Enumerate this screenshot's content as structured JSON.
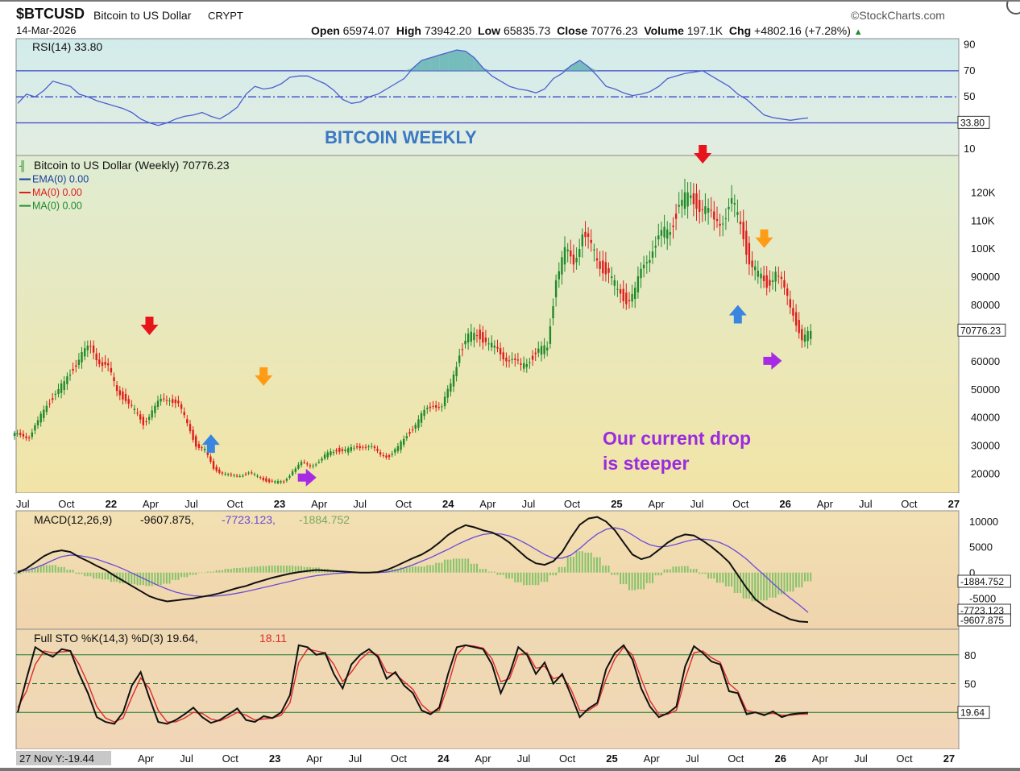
{
  "header": {
    "symbol": "$BTCUSD",
    "description": "Bitcoin to US Dollar",
    "exchange": "CRYPT",
    "date": "14-Mar-2026",
    "brand": "©StockCharts.com",
    "stats": [
      {
        "label": "Open",
        "value": "65974.07"
      },
      {
        "label": "High",
        "value": "73942.20"
      },
      {
        "label": "Low",
        "value": "65835.73"
      },
      {
        "label": "Close",
        "value": "70776.23"
      },
      {
        "label": "Volume",
        "value": "197.1K"
      },
      {
        "label": "Chg",
        "value": "+4802.16 (+7.28%)"
      }
    ]
  },
  "colors": {
    "up": "#1e8a2a",
    "down": "#e01b1b",
    "rsi_line": "#4a5fd0",
    "macd_line": "#111111",
    "signal_line": "#6b4bd8",
    "histogram": "#86c36a",
    "k_line": "#111111",
    "d_line": "#e02b2b",
    "arrow_red": "#e8141b",
    "arrow_orange": "#ff9c16",
    "arrow_blue": "#3a85e0",
    "arrow_purple": "#a52be5",
    "annotation_blue": "#3a78c4",
    "annotation_purple": "#9a2be0"
  },
  "chart_data": [
    {
      "type": "line",
      "panel": "rsi",
      "label": "RSI(14)",
      "label_value": "33.80",
      "reference_lines": [
        70,
        50,
        30
      ],
      "y_ticks": [
        "90",
        "70",
        "50",
        "10"
      ],
      "last_value_tag": "33.80",
      "ylim": [
        0,
        100
      ],
      "values": [
        45,
        52,
        50,
        55,
        62,
        60,
        58,
        52,
        50,
        47,
        45,
        43,
        41,
        38,
        33,
        30,
        28,
        30,
        33,
        35,
        36,
        38,
        35,
        33,
        37,
        42,
        52,
        58,
        56,
        57,
        60,
        65,
        66,
        66,
        63,
        60,
        55,
        48,
        45,
        46,
        50,
        52,
        56,
        60,
        64,
        72,
        78,
        80,
        82,
        84,
        86,
        85,
        80,
        72,
        66,
        62,
        58,
        56,
        55,
        53,
        56,
        64,
        68,
        74,
        78,
        73,
        66,
        58,
        56,
        53,
        51,
        52,
        54,
        58,
        64,
        66,
        68,
        69,
        70,
        66,
        62,
        58,
        52,
        48,
        42,
        36,
        34,
        33,
        32,
        33,
        33.8
      ]
    },
    {
      "type": "candlestick",
      "panel": "price",
      "legend": [
        {
          "name": "Bitcoin to US Dollar (Weekly) 70776.23",
          "color": "#1e8a2a"
        },
        {
          "name": "EMA(0) 0.00",
          "color": "#1a3fa0"
        },
        {
          "name": "MA(0) 0.00",
          "color": "#e01b1b"
        },
        {
          "name": "MA(0) 0.00",
          "color": "#1e8a2a"
        }
      ],
      "y_ticks": [
        "120K",
        "110K",
        "100K",
        "90000",
        "80000",
        "60000",
        "50000",
        "40000",
        "30000",
        "20000"
      ],
      "last_value_tag": "70776.23",
      "ylim": [
        13000,
        133000
      ],
      "x_tick_labels": [
        "Jul",
        "Oct",
        "22",
        "Apr",
        "Jul",
        "Oct",
        "23",
        "Apr",
        "Jul",
        "Oct",
        "24",
        "Apr",
        "Jul",
        "Oct",
        "25",
        "Apr",
        "Jul",
        "Oct",
        "26",
        "Apr",
        "Jul",
        "Oct",
        "27"
      ],
      "closes": [
        34000,
        33000,
        38000,
        45000,
        48000,
        52000,
        58000,
        62000,
        65000,
        60000,
        57000,
        50000,
        46000,
        42000,
        38000,
        42000,
        46000,
        47000,
        44000,
        38000,
        30000,
        28000,
        22000,
        20000,
        19000,
        19500,
        20000,
        19000,
        17500,
        16800,
        17000,
        21000,
        23500,
        23000,
        24000,
        27000,
        28500,
        28000,
        29000,
        30000,
        29000,
        27000,
        26000,
        29000,
        34000,
        37000,
        42000,
        45000,
        43000,
        52000,
        63000,
        68000,
        70000,
        67000,
        64000,
        62000,
        60000,
        58000,
        61000,
        63000,
        65000,
        90000,
        98000,
        96000,
        105000,
        100000,
        95000,
        90000,
        85000,
        82000,
        84000,
        95000,
        100000,
        104000,
        108000,
        115000,
        118000,
        117000,
        113000,
        110000,
        111000,
        115000,
        110000,
        95000,
        90000,
        88000,
        91000,
        85000,
        78000,
        66000,
        70776.23
      ],
      "annotations": [
        {
          "text": "BITCOIN WEEKLY",
          "color": "#3a78c4"
        },
        {
          "text": "Our current drop",
          "color": "#9a2be0"
        },
        {
          "text": "is steeper",
          "color": "#9a2be0"
        }
      ],
      "arrows": [
        {
          "direction": "down",
          "color": "red",
          "x": 15,
          "y": 72000
        },
        {
          "direction": "down",
          "color": "orange",
          "x": 28,
          "y": 54000
        },
        {
          "direction": "up",
          "color": "blue",
          "x": 22,
          "y": 31000
        },
        {
          "direction": "right",
          "color": "purple",
          "x": 33,
          "y": 18500
        },
        {
          "direction": "down",
          "color": "red",
          "x": 78,
          "y": 133000
        },
        {
          "direction": "down",
          "color": "orange",
          "x": 85,
          "y": 103000
        },
        {
          "direction": "up",
          "color": "blue",
          "x": 82,
          "y": 77000
        },
        {
          "direction": "right",
          "color": "purple",
          "x": 86,
          "y": 60000
        }
      ]
    },
    {
      "type": "line",
      "panel": "macd",
      "label": "MACD(12,26,9)",
      "values_text": [
        "-9607.875,",
        "-7723.123,",
        "-1884.752"
      ],
      "y_ticks": [
        "10000",
        "5000",
        "0",
        "-5000"
      ],
      "value_tags": [
        "-1884.752",
        "-7723.123",
        "-9607.875"
      ],
      "ylim": [
        -11000,
        12000
      ],
      "macd": [
        0,
        800,
        2000,
        3200,
        4000,
        4300,
        4000,
        3000,
        2200,
        1300,
        500,
        -600,
        -1600,
        -2600,
        -3600,
        -4600,
        -5200,
        -5600,
        -5400,
        -5200,
        -5000,
        -4700,
        -4400,
        -4000,
        -3500,
        -3000,
        -2600,
        -2000,
        -1500,
        -1000,
        -600,
        -200,
        100,
        300,
        500,
        400,
        300,
        200,
        100,
        0,
        0,
        100,
        500,
        1200,
        2000,
        2800,
        3500,
        4500,
        5800,
        7300,
        8400,
        9200,
        8800,
        8200,
        7800,
        7000,
        5800,
        4300,
        2800,
        1800,
        1500,
        2200,
        4000,
        6800,
        9300,
        10500,
        10800,
        9900,
        8200,
        5800,
        3500,
        2600,
        3100,
        4400,
        5800,
        6800,
        7400,
        7200,
        6200,
        5000,
        3600,
        2000,
        -500,
        -3000,
        -5200,
        -6500,
        -7500,
        -8300,
        -9100,
        -9500,
        -9607.875
      ],
      "signal": [
        300,
        400,
        900,
        1600,
        2400,
        3100,
        3400,
        3300,
        3000,
        2600,
        2000,
        1400,
        700,
        -100,
        -900,
        -1700,
        -2500,
        -3200,
        -3800,
        -4200,
        -4500,
        -4600,
        -4600,
        -4500,
        -4300,
        -4000,
        -3700,
        -3300,
        -2900,
        -2500,
        -2100,
        -1700,
        -1300,
        -900,
        -600,
        -400,
        -200,
        -100,
        0,
        0,
        0,
        0,
        100,
        400,
        900,
        1500,
        2200,
        2900,
        3700,
        4500,
        5400,
        6200,
        6900,
        7400,
        7600,
        7500,
        7100,
        6400,
        5500,
        4500,
        3500,
        2800,
        2800,
        3400,
        4700,
        6200,
        7500,
        8400,
        8700,
        8300,
        7300,
        6200,
        5400,
        5000,
        5100,
        5500,
        6000,
        6400,
        6500,
        6300,
        5800,
        5000,
        3900,
        2600,
        1000,
        -500,
        -2100,
        -3600,
        -5000,
        -6300,
        -7723.123
      ],
      "histogram_last": -1884.752
    },
    {
      "type": "line",
      "panel": "stochastic",
      "label": "Full STO %K(14,3) %D(3)",
      "k_label_value": "19.64",
      "d_label_value": "18.11",
      "reference_lines": [
        80,
        50,
        20
      ],
      "y_ticks": [
        "80",
        "50"
      ],
      "last_value_tag": "19.64",
      "ylim": [
        0,
        100
      ],
      "k": [
        20,
        55,
        88,
        82,
        78,
        86,
        84,
        60,
        40,
        15,
        10,
        8,
        20,
        48,
        62,
        35,
        10,
        8,
        12,
        18,
        25,
        15,
        9,
        12,
        18,
        24,
        12,
        10,
        16,
        14,
        20,
        38,
        90,
        88,
        80,
        82,
        60,
        45,
        70,
        80,
        86,
        78,
        55,
        62,
        48,
        40,
        22,
        18,
        25,
        60,
        88,
        90,
        88,
        86,
        70,
        40,
        60,
        88,
        80,
        60,
        72,
        50,
        60,
        38,
        15,
        24,
        30,
        65,
        82,
        90,
        75,
        45,
        26,
        15,
        19,
        26,
        68,
        89,
        82,
        73,
        70,
        42,
        40,
        18,
        20,
        17,
        21,
        15,
        18,
        19,
        19.64
      ],
      "d": [
        25,
        42,
        70,
        84,
        82,
        83,
        84,
        70,
        50,
        26,
        14,
        10,
        14,
        36,
        56,
        45,
        22,
        10,
        10,
        14,
        20,
        19,
        13,
        11,
        15,
        20,
        17,
        12,
        13,
        14,
        17,
        30,
        72,
        86,
        84,
        82,
        70,
        52,
        62,
        75,
        83,
        80,
        62,
        60,
        52,
        44,
        28,
        20,
        22,
        48,
        80,
        90,
        89,
        87,
        76,
        52,
        55,
        80,
        82,
        66,
        68,
        55,
        58,
        44,
        22,
        22,
        28,
        55,
        76,
        88,
        80,
        55,
        32,
        18,
        18,
        22,
        55,
        82,
        84,
        77,
        72,
        50,
        42,
        22,
        20,
        18,
        19,
        17,
        17,
        18,
        18.11
      ]
    }
  ],
  "bottom_axis": {
    "crosshair_readout": "27 Nov Y:-19.44",
    "x_tick_labels": [
      "Apr",
      "Jul",
      "Oct",
      "23",
      "Apr",
      "Jul",
      "Oct",
      "24",
      "Apr",
      "Jul",
      "Oct",
      "25",
      "Apr",
      "Jul",
      "Oct",
      "26",
      "Apr",
      "Jul",
      "Oct",
      "27"
    ]
  }
}
